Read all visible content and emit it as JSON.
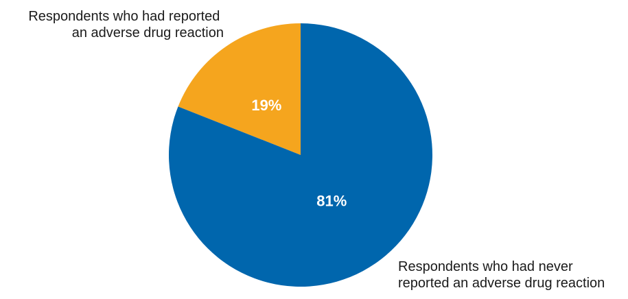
{
  "chart_data": {
    "type": "pie",
    "slices": [
      {
        "label_lines": [
          "Respondents who had reported",
          "an adverse drug reaction"
        ],
        "value": 19,
        "value_label": "19%",
        "color": "#f5a51e"
      },
      {
        "label_lines": [
          "Respondents who had never",
          "reported an adverse drug reaction"
        ],
        "value": 81,
        "value_label": "81%",
        "color": "#0066ad"
      }
    ]
  }
}
